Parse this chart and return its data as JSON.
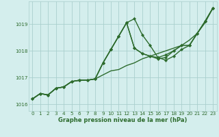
{
  "title": "Graphe pression niveau de la mer (hPa)",
  "bg_color": "#d4eeed",
  "grid_color": "#aacfcd",
  "line_color": "#2d6b2d",
  "series": [
    {
      "values": [
        1016.2,
        1016.4,
        1016.35,
        1016.6,
        1016.65,
        1016.85,
        1016.9,
        1016.9,
        1016.95,
        1017.1,
        1017.25,
        1017.3,
        1017.45,
        1017.55,
        1017.7,
        1017.8,
        1017.9,
        1018.0,
        1018.1,
        1018.2,
        1018.4,
        1018.65,
        1019.05,
        1019.6
      ],
      "markers": false,
      "linewidth": 1.0
    },
    {
      "values": [
        1016.2,
        1016.4,
        1016.35,
        1016.6,
        1016.65,
        1016.85,
        1016.9,
        1016.9,
        1016.95,
        1017.55,
        1018.05,
        1018.55,
        1019.05,
        1019.2,
        1018.6,
        1018.2,
        1017.75,
        1017.65,
        1017.8,
        1018.05,
        1018.2,
        1018.65,
        1019.1,
        1019.6
      ],
      "markers": true,
      "linewidth": 1.0
    },
    {
      "values": [
        1016.2,
        1016.4,
        1016.35,
        1016.6,
        1016.65,
        1016.85,
        1016.9,
        1016.9,
        1016.95,
        1017.55,
        1018.05,
        1018.55,
        1019.05,
        1018.1,
        1017.9,
        1017.8,
        1017.75,
        1017.85,
        1018.0,
        1018.2,
        1018.2,
        1018.65,
        1019.1,
        1019.6
      ],
      "markers": true,
      "linewidth": 1.0
    },
    {
      "values": [
        1016.2,
        1016.4,
        1016.35,
        1016.6,
        1016.65,
        1016.85,
        1016.9,
        1016.9,
        1016.95,
        1017.55,
        1018.05,
        1018.55,
        1019.05,
        1018.1,
        1017.9,
        1017.8,
        1017.7,
        1017.75,
        1018.0,
        1018.2,
        1018.2,
        1018.65,
        1019.1,
        1019.6
      ],
      "markers": true,
      "linewidth": 1.0
    }
  ],
  "xlim": [
    -0.5,
    23.5
  ],
  "ylim": [
    1015.75,
    1019.85
  ],
  "yticks": [
    1016,
    1017,
    1018,
    1019
  ],
  "xticks": [
    0,
    1,
    2,
    3,
    4,
    5,
    6,
    7,
    8,
    9,
    10,
    11,
    12,
    13,
    14,
    15,
    16,
    17,
    18,
    19,
    20,
    21,
    22,
    23
  ],
  "xlabel_fontsize": 6.0,
  "tick_fontsize": 5.2,
  "marker": "D",
  "marker_size": 2.2
}
